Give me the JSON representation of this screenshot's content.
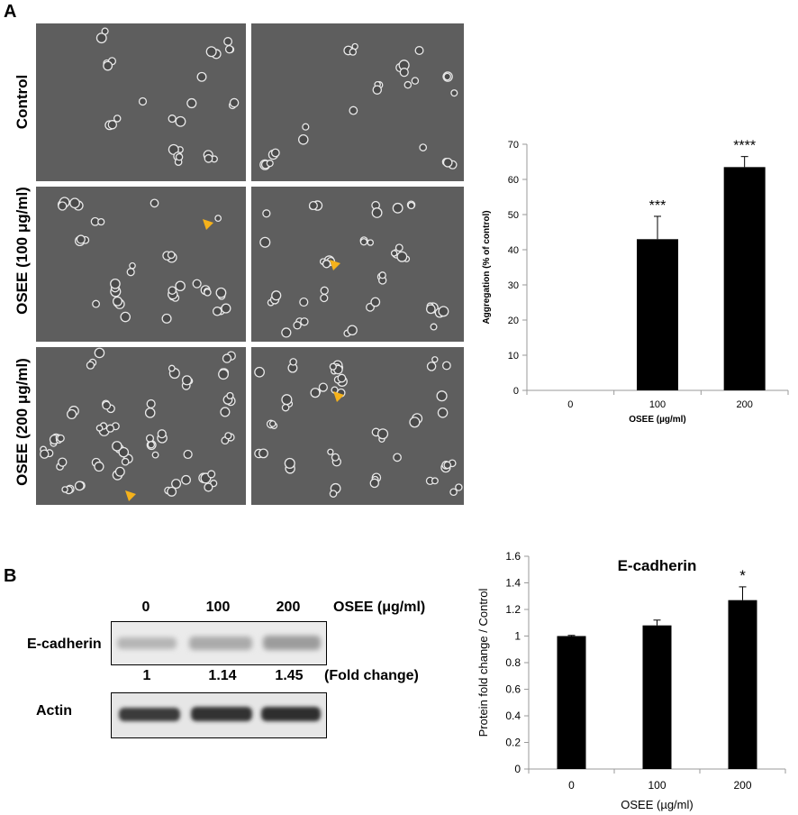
{
  "panel_a": {
    "letter": "A",
    "row_labels": [
      "Control",
      "OSEE (100 μg/ml)",
      "OSEE (200 μg/ml)"
    ]
  },
  "panel_b": {
    "letter": "B",
    "blot": {
      "concentrations": [
        "0",
        "100",
        "200"
      ],
      "treatment_label": "OSEE (μg/ml)",
      "protein_label": "E-cadherin",
      "fold_values": [
        "1",
        "1.14",
        "1.45"
      ],
      "fold_label": "(Fold change)",
      "loading_label": "Actin"
    }
  },
  "chart_data": [
    {
      "type": "bar",
      "title": "",
      "xlabel": "OSEE (µg/ml)",
      "ylabel": "Aggregation (% of control)",
      "categories": [
        "0",
        "100",
        "200"
      ],
      "values": [
        0,
        43,
        63.5
      ],
      "errors": [
        0,
        6.5,
        3
      ],
      "significance": [
        "",
        "***",
        "****"
      ],
      "ylim": [
        0,
        70
      ],
      "yticks": [
        0,
        10,
        20,
        30,
        40,
        50,
        60,
        70
      ],
      "bar_color": "#000000",
      "grid": false
    },
    {
      "type": "bar",
      "title": "E-cadherin",
      "xlabel": "OSEE (µg/ml)",
      "ylabel": "Protein fold change / Control",
      "categories": [
        "0",
        "100",
        "200"
      ],
      "values": [
        1.0,
        1.08,
        1.27
      ],
      "errors": [
        0.005,
        0.04,
        0.1
      ],
      "significance": [
        "",
        "",
        "*"
      ],
      "ylim": [
        0,
        1.6
      ],
      "yticks": [
        0,
        0.2,
        0.4,
        0.6,
        0.8,
        1,
        1.2,
        1.4,
        1.6
      ],
      "bar_color": "#000000",
      "grid": false
    }
  ]
}
